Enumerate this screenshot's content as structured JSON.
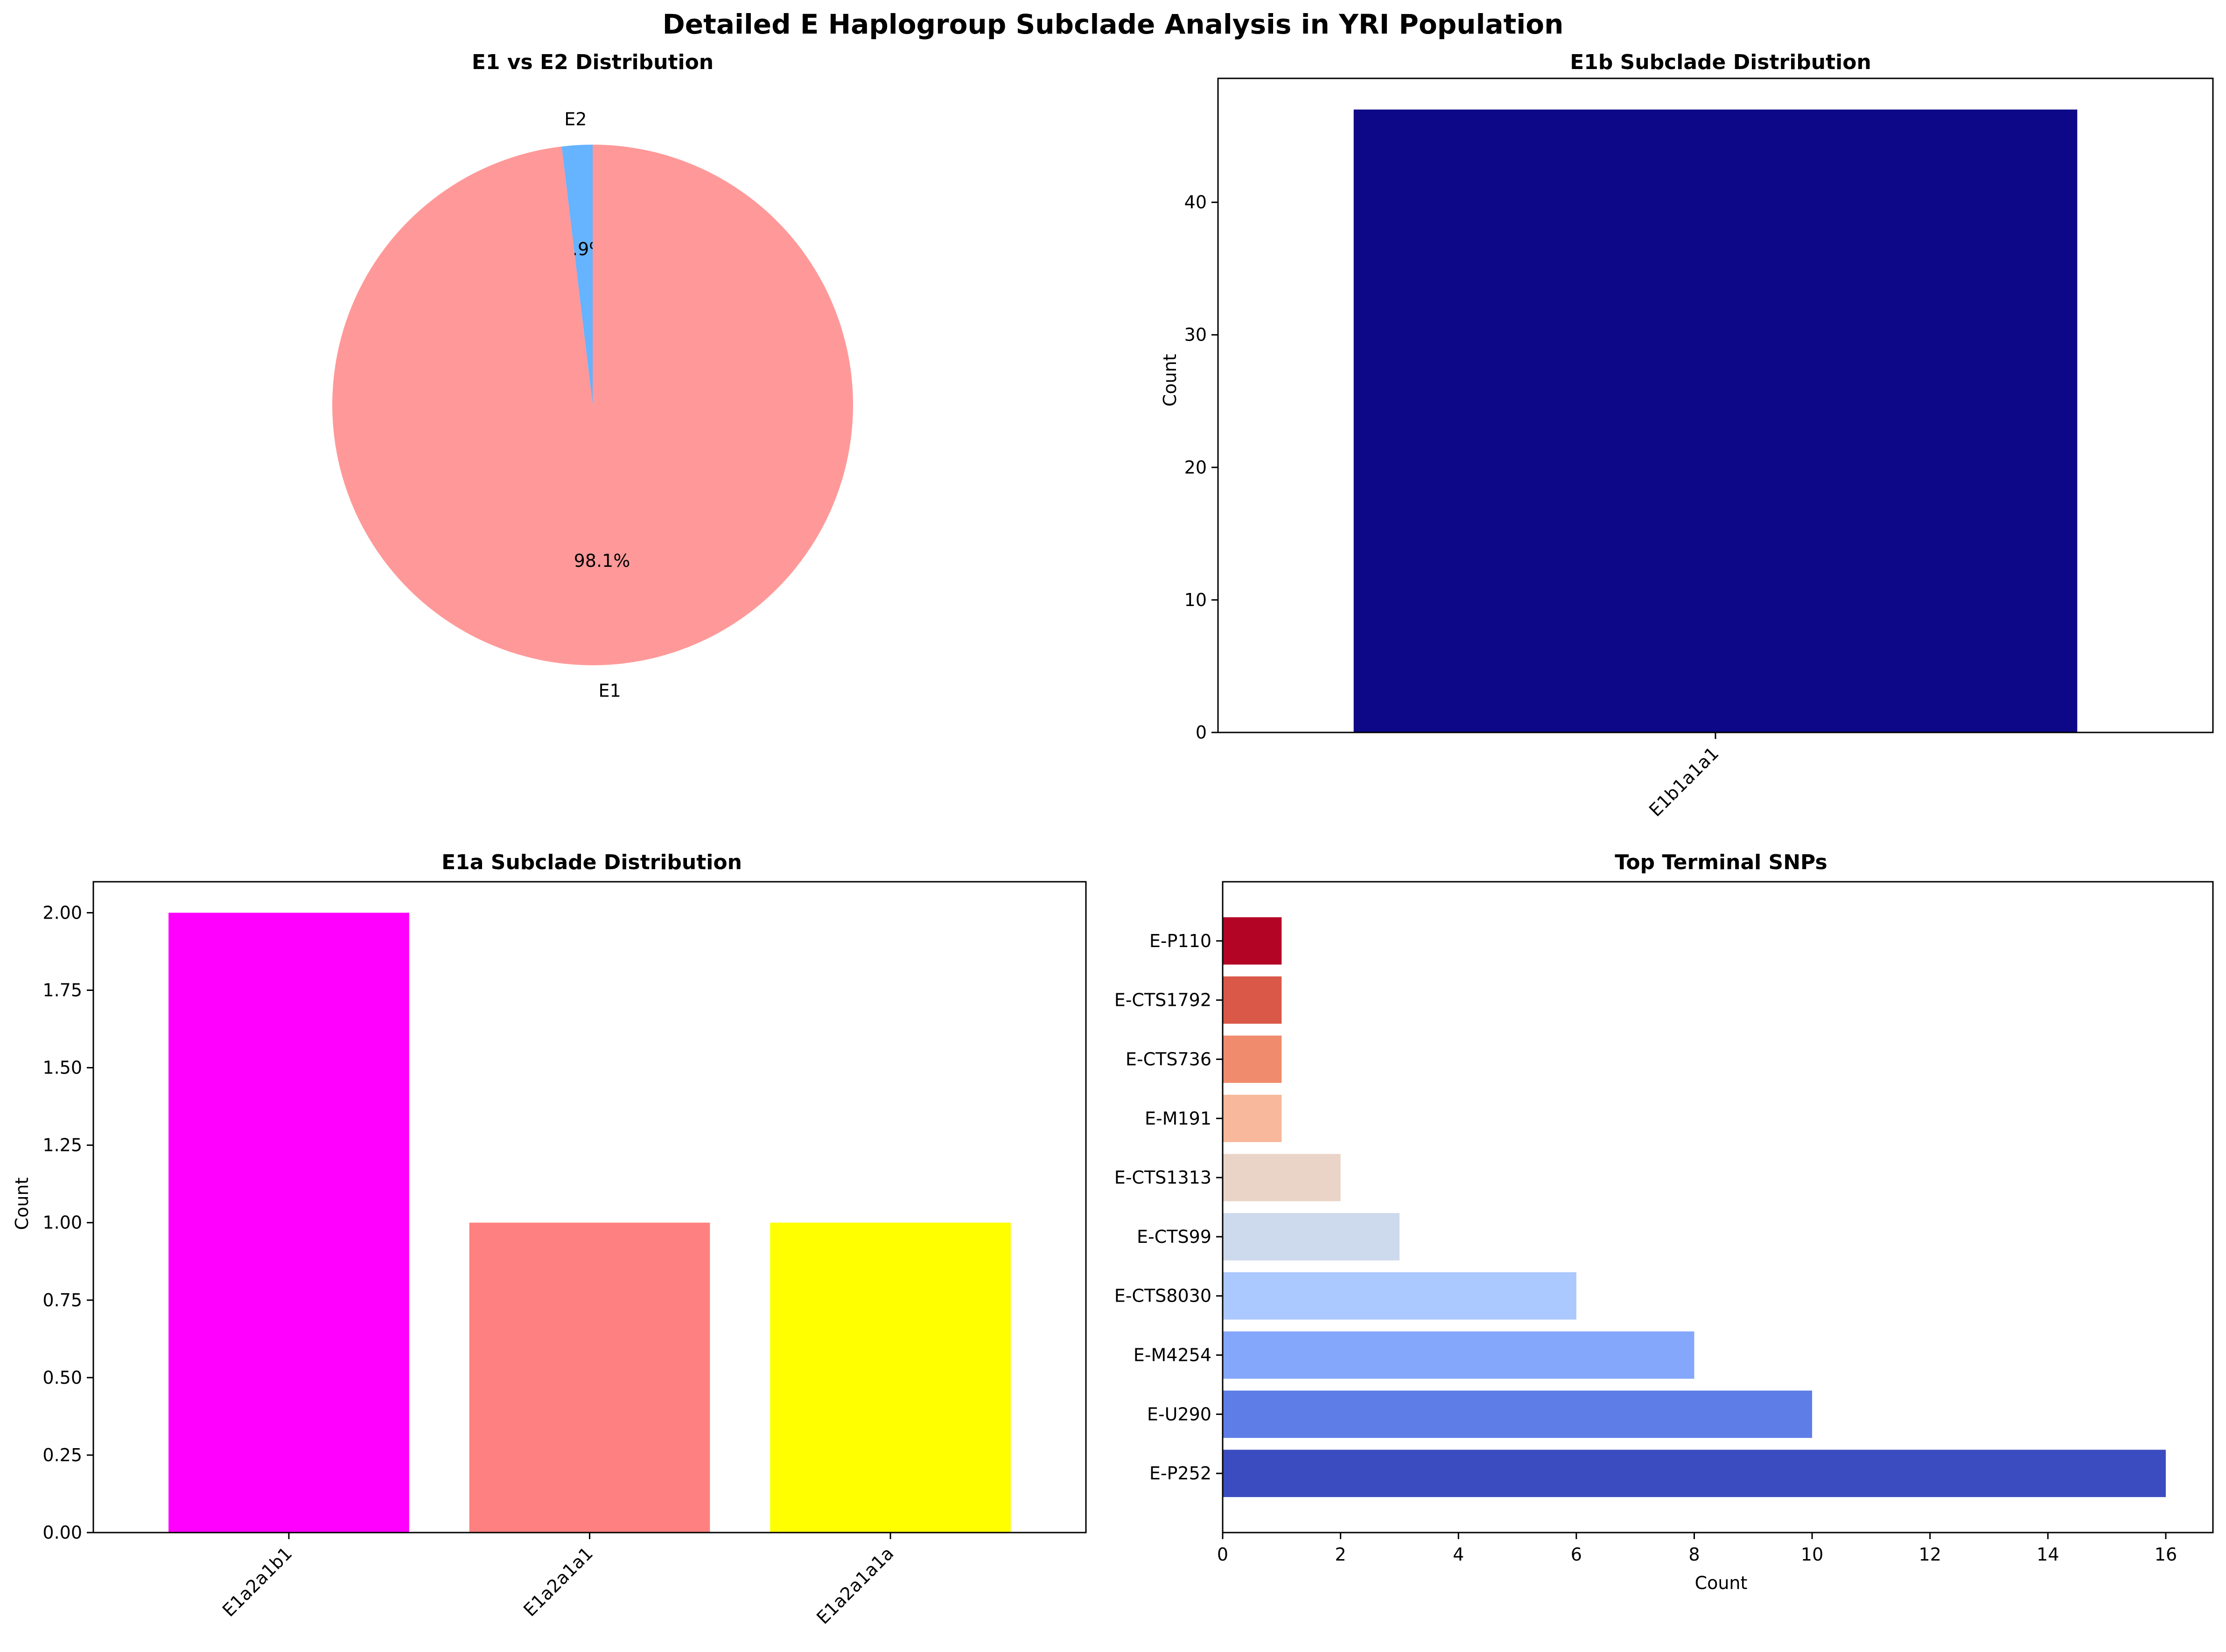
{
  "suptitle": "Detailed E Haplogroup Subclade Analysis in YRI Population",
  "chart_data": [
    {
      "type": "pie",
      "title": "E1 vs E2 Distribution",
      "labels": [
        "E2",
        "E1"
      ],
      "values": [
        1.9,
        98.1
      ],
      "autopct": [
        "1.9%",
        "98.1%"
      ],
      "colors": [
        "#66b3ff",
        "#ff9999"
      ]
    },
    {
      "type": "bar",
      "title": "E1b Subclade Distribution",
      "xlabel": "",
      "ylabel": "Count",
      "categories": [
        "E1b1a1a1"
      ],
      "values": [
        47
      ],
      "ylim": [
        0,
        49.35
      ],
      "yticks": [
        0,
        10,
        20,
        30,
        40
      ],
      "colors": [
        "#0d0887"
      ]
    },
    {
      "type": "bar",
      "title": "E1a Subclade Distribution",
      "xlabel": "",
      "ylabel": "Count",
      "categories": [
        "E1a2a1b1",
        "E1a2a1a1",
        "E1a2a1a1a"
      ],
      "values": [
        2,
        1,
        1
      ],
      "ylim": [
        0,
        2.1
      ],
      "yticks": [
        "0.00",
        "0.25",
        "0.50",
        "0.75",
        "1.00",
        "1.25",
        "1.50",
        "1.75",
        "2.00"
      ],
      "colors": [
        "#ff00ff",
        "#ff8080",
        "#ffff00"
      ]
    },
    {
      "type": "bar",
      "orientation": "horizontal",
      "title": "Top Terminal SNPs",
      "xlabel": "Count",
      "ylabel": "",
      "categories": [
        "E-P252",
        "E-U290",
        "E-M4254",
        "E-CTS8030",
        "E-CTS99",
        "E-CTS1313",
        "E-M191",
        "E-CTS736",
        "E-CTS1792",
        "E-P110"
      ],
      "values": [
        16,
        10,
        8,
        6,
        3,
        2,
        1,
        1,
        1,
        1
      ],
      "xlim": [
        0,
        16.8
      ],
      "xticks": [
        0,
        2,
        4,
        6,
        8,
        10,
        12,
        14,
        16
      ],
      "colors": [
        "#3b4cc0",
        "#5e7de7",
        "#84a7fc",
        "#abc8ff",
        "#cdd9ec",
        "#ead4c8",
        "#f7b89c",
        "#f08b6d",
        "#d95848",
        "#b40426"
      ]
    }
  ]
}
